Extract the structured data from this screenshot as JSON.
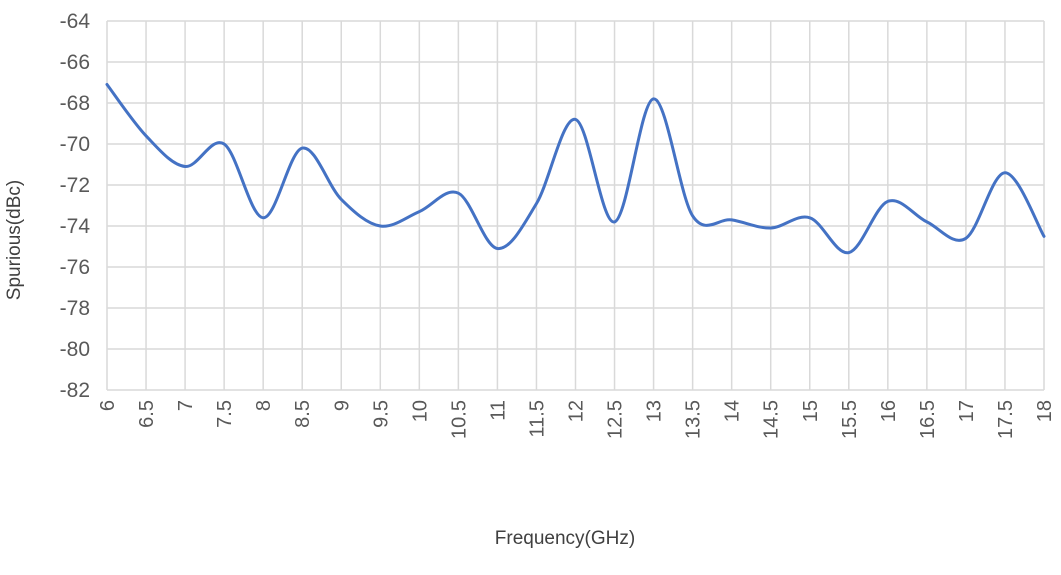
{
  "chart_data": {
    "type": "line",
    "title": "",
    "xlabel": "Frequency(GHz)",
    "ylabel": "Spurious(dBc)",
    "x": [
      6,
      6.5,
      7,
      7.5,
      8,
      8.5,
      9,
      9.5,
      10,
      10.5,
      11,
      11.5,
      12,
      12.5,
      13,
      13.5,
      14,
      14.5,
      15,
      15.5,
      16,
      16.5,
      17,
      17.5,
      18
    ],
    "x_tick_labels": [
      "6",
      "6.5",
      "7",
      "7.5",
      "8",
      "8.5",
      "9",
      "9.5",
      "10",
      "10.5",
      "11",
      "11.5",
      "12",
      "12.5",
      "13",
      "13.5",
      "14",
      "14.5",
      "15",
      "15.5",
      "16",
      "16.5",
      "17",
      "17.5",
      "18"
    ],
    "series": [
      {
        "values": [
          -67.1,
          -69.6,
          -71.1,
          -70.0,
          -73.6,
          -70.2,
          -72.7,
          -74.0,
          -73.3,
          -72.4,
          -75.1,
          -72.9,
          -68.8,
          -73.8,
          -67.8,
          -73.5,
          -73.7,
          -74.1,
          -73.6,
          -75.3,
          -72.8,
          -73.8,
          -74.6,
          -71.4,
          -74.5
        ],
        "color": "#4472c4"
      }
    ],
    "ylim": [
      -82,
      -64
    ],
    "y_ticks": [
      -64,
      -66,
      -68,
      -70,
      -72,
      -74,
      -76,
      -78,
      -80,
      -82
    ],
    "grid": true,
    "legend": "none"
  }
}
